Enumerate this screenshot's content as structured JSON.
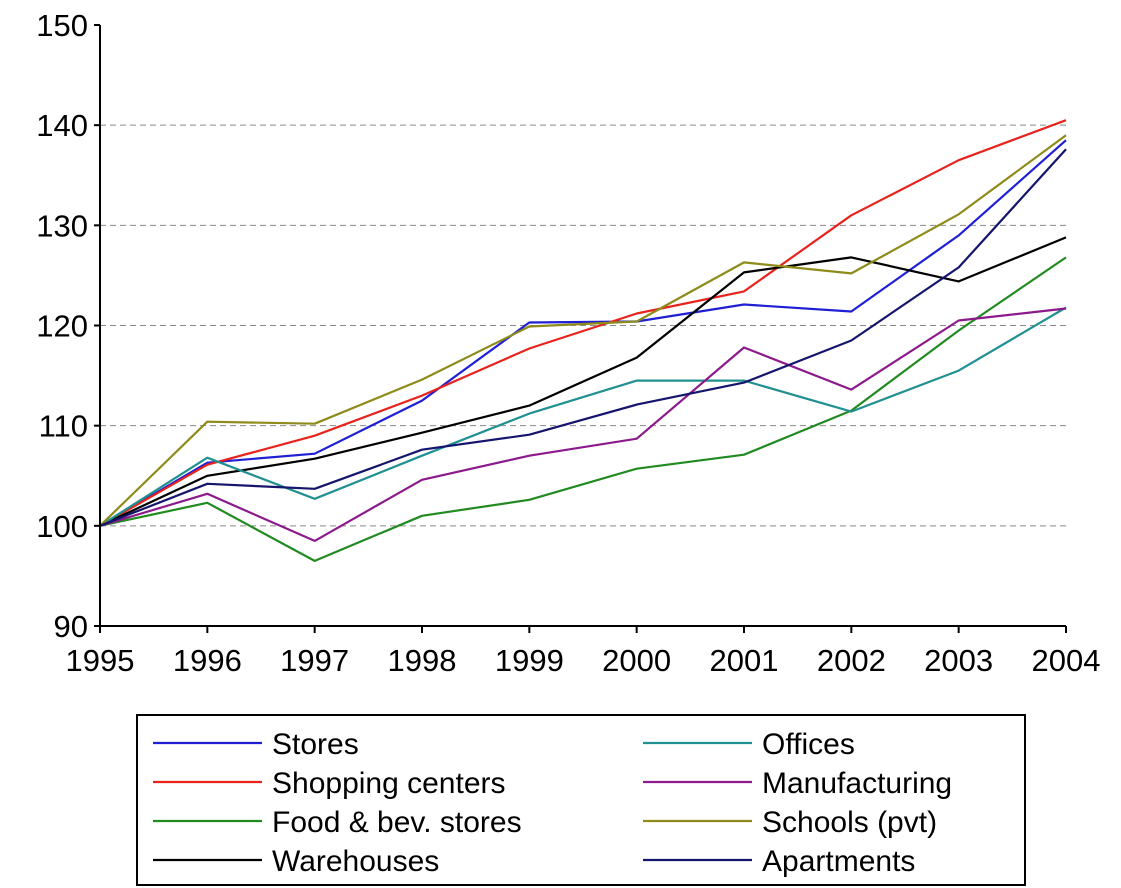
{
  "chart_data": {
    "type": "line",
    "title": "",
    "xlabel": "",
    "ylabel": "",
    "x": [
      "1995",
      "1996",
      "1997",
      "1998",
      "1999",
      "2000",
      "2001",
      "2002",
      "2003",
      "2004"
    ],
    "ylim": [
      90,
      150
    ],
    "yticks": [
      90,
      100,
      110,
      120,
      130,
      140,
      150
    ],
    "grid": "horizontal dashed",
    "legend_position": "bottom",
    "series": [
      {
        "name": "Stores",
        "color": "#1f1fd6",
        "values": [
          100,
          106.3,
          107.2,
          112.5,
          120.3,
          120.4,
          122.1,
          121.4,
          129,
          138.5
        ]
      },
      {
        "name": "Shopping centers",
        "color": "#e8231c",
        "values": [
          100,
          106.1,
          109,
          113,
          117.7,
          121.2,
          123.4,
          131,
          136.5,
          140.5
        ]
      },
      {
        "name": "Food & bev. stores",
        "color": "#218a21",
        "values": [
          100,
          102.3,
          96.5,
          101,
          102.6,
          105.7,
          107.1,
          111.5,
          119.5,
          126.8
        ]
      },
      {
        "name": "Warehouses",
        "color": "#000000",
        "values": [
          100,
          105,
          106.7,
          109.3,
          112,
          116.8,
          125.3,
          126.8,
          124.4,
          128.8
        ]
      },
      {
        "name": "Offices",
        "color": "#219091",
        "values": [
          100,
          106.8,
          102.7,
          107,
          111.2,
          114.5,
          114.5,
          111.4,
          115.5,
          121.8
        ]
      },
      {
        "name": "Manufacturing",
        "color": "#8c1a8c",
        "values": [
          100,
          103.2,
          98.5,
          104.6,
          107,
          108.7,
          117.8,
          113.6,
          120.5,
          121.7
        ]
      },
      {
        "name": "Schools (pvt)",
        "color": "#8f8b1a",
        "values": [
          100,
          110.4,
          110.2,
          114.6,
          119.9,
          120.4,
          126.3,
          125.2,
          131.1,
          139
        ]
      },
      {
        "name": "Apartments",
        "color": "#15156e",
        "values": [
          100,
          104.2,
          103.7,
          107.6,
          109.1,
          112.1,
          114.3,
          118.5,
          125.8,
          137.6
        ]
      }
    ]
  }
}
